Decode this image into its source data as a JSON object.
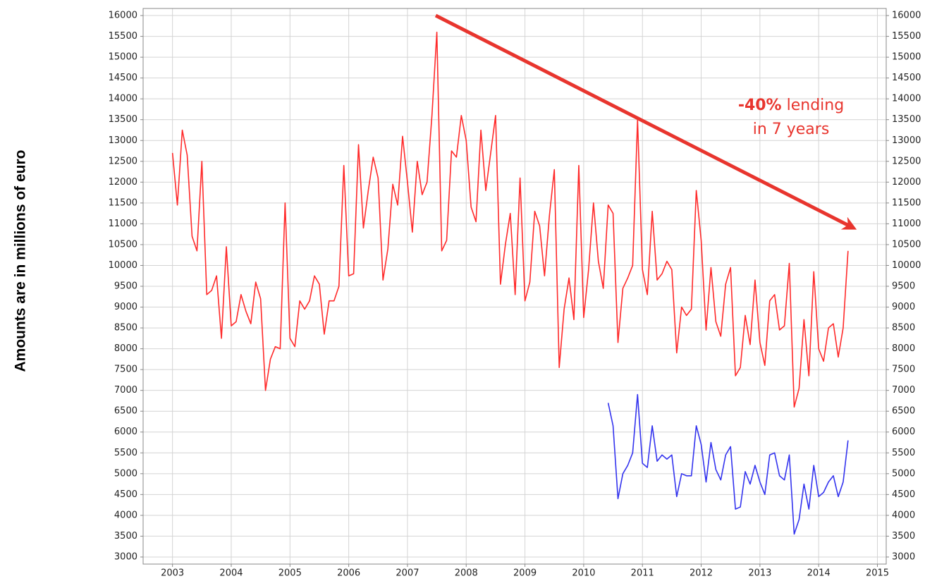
{
  "chart_data": {
    "type": "line",
    "ylabel": "Amounts are in millions of euro",
    "annotation": {
      "bold": "-40%",
      "text": "lending",
      "line2": "in 7 years"
    },
    "xlim": [
      2002.5,
      2015.15
    ],
    "xticks": [
      2003,
      2004,
      2005,
      2006,
      2007,
      2008,
      2009,
      2010,
      2011,
      2012,
      2013,
      2014,
      2015
    ],
    "ylim": [
      2830,
      16170
    ],
    "yticks": [
      3000,
      3500,
      4000,
      4500,
      5000,
      5500,
      6000,
      6500,
      7000,
      7500,
      8000,
      8500,
      9000,
      9500,
      10000,
      10500,
      11000,
      11500,
      12000,
      12500,
      13000,
      13500,
      14000,
      14500,
      15000,
      15500,
      16000
    ],
    "grid": true,
    "series": [
      {
        "color": "#ff2a2a",
        "start": 2003,
        "values": [
          12700,
          11450,
          13250,
          12650,
          10700,
          10350,
          12500,
          9300,
          9400,
          9750,
          8250,
          10450,
          8550,
          8650,
          9300,
          8900,
          8600,
          9600,
          9200,
          7000,
          7750,
          8050,
          8000,
          11500,
          8250,
          8050,
          9150,
          8950,
          9150,
          9750,
          9550,
          8350,
          9150,
          9150,
          9500,
          12400,
          9750,
          9800,
          12900,
          10900,
          11800,
          12600,
          12100,
          9650,
          10400,
          11950,
          11450,
          13100,
          12000,
          10800,
          12500,
          11700,
          12000,
          13600,
          15600,
          10350,
          10600,
          12750,
          12600,
          13600,
          13000,
          11400,
          11050,
          13250,
          11800,
          12700,
          13600,
          9550,
          10500,
          11250,
          9300,
          12100,
          9150,
          9600,
          11300,
          10950,
          9750,
          11200,
          12300,
          7550,
          8950,
          9700,
          8700,
          12400,
          8750,
          9900,
          11500,
          10100,
          9450,
          11450,
          11250,
          8150,
          9450,
          9700,
          10000,
          13500,
          9900,
          9300,
          11300,
          9650,
          9800,
          10100,
          9900,
          7900,
          9000,
          8800,
          8950,
          11800,
          10600,
          8450,
          9950,
          8650,
          8300,
          9550,
          9950,
          7350,
          7550,
          8800,
          8100,
          9650,
          8150,
          7600,
          9150,
          9300,
          8450,
          8550,
          10050,
          6600,
          7050,
          8700,
          7350,
          9850,
          8000,
          7700,
          8500,
          8600,
          7800,
          8500,
          10350
        ]
      },
      {
        "color": "#3333ee",
        "start": 2010.4167,
        "values": [
          6700,
          6150,
          4400,
          5000,
          5200,
          5500,
          6900,
          5250,
          5150,
          6150,
          5300,
          5450,
          5350,
          5450,
          4450,
          5000,
          4950,
          4950,
          6150,
          5700,
          4800,
          5750,
          5100,
          4850,
          5450,
          5650,
          4150,
          4200,
          5050,
          4750,
          5200,
          4800,
          4500,
          5450,
          5500,
          4950,
          4850,
          5450,
          3550,
          3900,
          4750,
          4150,
          5200,
          4450,
          4550,
          4800,
          4950,
          4450,
          4800,
          5800
        ]
      }
    ]
  }
}
